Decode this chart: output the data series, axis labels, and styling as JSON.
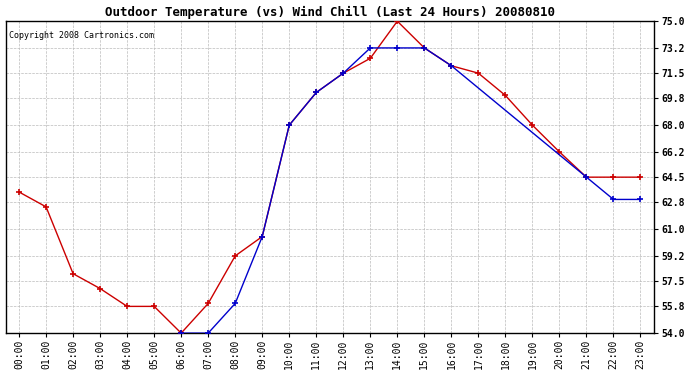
{
  "title": "Outdoor Temperature (vs) Wind Chill (Last 24 Hours) 20080810",
  "copyright": "Copyright 2008 Cartronics.com",
  "x_labels": [
    "00:00",
    "01:00",
    "02:00",
    "03:00",
    "04:00",
    "05:00",
    "06:00",
    "07:00",
    "08:00",
    "09:00",
    "10:00",
    "11:00",
    "12:00",
    "13:00",
    "14:00",
    "15:00",
    "16:00",
    "17:00",
    "18:00",
    "19:00",
    "20:00",
    "21:00",
    "22:00",
    "23:00"
  ],
  "temp_data": [
    63.5,
    62.5,
    58.0,
    57.0,
    55.8,
    55.8,
    54.0,
    56.0,
    59.2,
    60.5,
    68.0,
    70.2,
    71.5,
    72.5,
    75.0,
    73.2,
    72.0,
    71.5,
    70.0,
    68.0,
    66.2,
    64.5,
    64.5,
    64.5
  ],
  "windchill_data": [
    null,
    null,
    null,
    null,
    null,
    null,
    54.0,
    54.0,
    56.0,
    60.5,
    68.0,
    70.2,
    71.5,
    73.2,
    73.2,
    73.2,
    72.0,
    null,
    null,
    null,
    null,
    64.5,
    63.0,
    63.0
  ],
  "y_ticks": [
    54.0,
    55.8,
    57.5,
    59.2,
    61.0,
    62.8,
    64.5,
    66.2,
    68.0,
    69.8,
    71.5,
    73.2,
    75.0
  ],
  "ylim": [
    54.0,
    75.0
  ],
  "temp_color": "#cc0000",
  "windchill_color": "#0000cc",
  "grid_color": "#bbbbbb",
  "background_color": "#ffffff",
  "title_fontsize": 9,
  "copyright_fontsize": 6,
  "tick_fontsize": 7,
  "ytick_fontsize": 7
}
